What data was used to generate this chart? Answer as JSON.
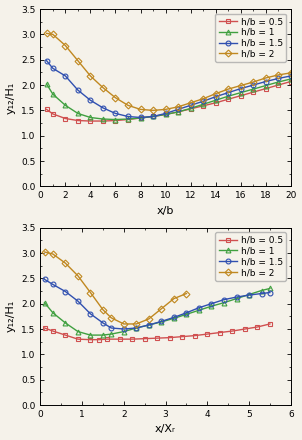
{
  "top": {
    "xlabel": "x/b",
    "ylabel": "y₁₂/H₁",
    "xlim": [
      0,
      20
    ],
    "ylim": [
      0,
      3.5
    ],
    "xticks": [
      0,
      2,
      4,
      6,
      8,
      10,
      12,
      14,
      16,
      18,
      20
    ],
    "yticks": [
      0,
      0.5,
      1.0,
      1.5,
      2.0,
      2.5,
      3.0,
      3.5
    ],
    "series": [
      {
        "label": "h/b = 0.5",
        "color": "#d05050",
        "marker": "s",
        "x": [
          0.5,
          1,
          2,
          3,
          4,
          5,
          6,
          7,
          8,
          9,
          10,
          11,
          12,
          13,
          14,
          15,
          16,
          17,
          18,
          19,
          20
        ],
        "y": [
          1.52,
          1.43,
          1.34,
          1.3,
          1.29,
          1.29,
          1.3,
          1.32,
          1.35,
          1.38,
          1.42,
          1.47,
          1.53,
          1.59,
          1.65,
          1.72,
          1.79,
          1.86,
          1.93,
          2.0,
          2.07
        ]
      },
      {
        "label": "h/b = 1",
        "color": "#40a040",
        "marker": "^",
        "x": [
          0.5,
          1,
          2,
          3,
          4,
          5,
          6,
          7,
          8,
          9,
          10,
          11,
          12,
          13,
          14,
          15,
          16,
          17,
          18,
          19,
          20
        ],
        "y": [
          2.02,
          1.82,
          1.6,
          1.44,
          1.36,
          1.33,
          1.32,
          1.33,
          1.35,
          1.38,
          1.42,
          1.47,
          1.54,
          1.62,
          1.7,
          1.78,
          1.85,
          1.92,
          1.99,
          2.06,
          2.12
        ]
      },
      {
        "label": "h/b = 1.5",
        "color": "#3050b0",
        "marker": "o",
        "x": [
          0.5,
          1,
          2,
          3,
          4,
          5,
          6,
          7,
          8,
          9,
          10,
          11,
          12,
          13,
          14,
          15,
          16,
          17,
          18,
          19,
          20
        ],
        "y": [
          2.48,
          2.33,
          2.18,
          1.9,
          1.7,
          1.55,
          1.44,
          1.38,
          1.36,
          1.38,
          1.44,
          1.52,
          1.6,
          1.68,
          1.77,
          1.85,
          1.93,
          2.0,
          2.07,
          2.13,
          2.18
        ]
      },
      {
        "label": "h/b = 2",
        "color": "#c08820",
        "marker": "D",
        "x": [
          0.5,
          1,
          2,
          3,
          4,
          5,
          6,
          7,
          8,
          9,
          10,
          11,
          12,
          13,
          14,
          15,
          16,
          17,
          18,
          19,
          20
        ],
        "y": [
          3.02,
          3.0,
          2.78,
          2.48,
          2.18,
          1.95,
          1.75,
          1.6,
          1.52,
          1.5,
          1.52,
          1.57,
          1.65,
          1.73,
          1.83,
          1.92,
          1.99,
          2.06,
          2.14,
          2.2,
          2.24
        ]
      }
    ]
  },
  "bottom": {
    "xlabel": "x/Xᵣ",
    "ylabel": "y₁₂/H₁",
    "xlim": [
      0,
      6
    ],
    "ylim": [
      0,
      3.5
    ],
    "xticks": [
      0,
      1,
      2,
      3,
      4,
      5,
      6
    ],
    "yticks": [
      0,
      0.5,
      1.0,
      1.5,
      2.0,
      2.5,
      3.0,
      3.5
    ],
    "series": [
      {
        "label": "h/b = 0.5",
        "color": "#d05050",
        "marker": "s",
        "x": [
          0.1,
          0.3,
          0.6,
          0.9,
          1.2,
          1.4,
          1.6,
          1.9,
          2.2,
          2.5,
          2.8,
          3.1,
          3.4,
          3.7,
          4.0,
          4.3,
          4.6,
          4.9,
          5.2,
          5.5
        ],
        "y": [
          1.52,
          1.46,
          1.38,
          1.3,
          1.29,
          1.29,
          1.3,
          1.3,
          1.3,
          1.31,
          1.32,
          1.33,
          1.35,
          1.37,
          1.4,
          1.43,
          1.46,
          1.5,
          1.54,
          1.6
        ]
      },
      {
        "label": "h/b = 1",
        "color": "#40a040",
        "marker": "^",
        "x": [
          0.1,
          0.3,
          0.6,
          0.9,
          1.2,
          1.5,
          1.7,
          2.0,
          2.3,
          2.6,
          2.9,
          3.2,
          3.5,
          3.8,
          4.1,
          4.4,
          4.7,
          5.0,
          5.3,
          5.5
        ],
        "y": [
          2.02,
          1.82,
          1.62,
          1.45,
          1.38,
          1.38,
          1.4,
          1.45,
          1.52,
          1.58,
          1.64,
          1.71,
          1.79,
          1.87,
          1.95,
          2.02,
          2.1,
          2.18,
          2.26,
          2.3
        ]
      },
      {
        "label": "h/b = 1.5",
        "color": "#3050b0",
        "marker": "o",
        "x": [
          0.1,
          0.3,
          0.6,
          0.9,
          1.2,
          1.5,
          1.7,
          2.0,
          2.3,
          2.6,
          2.9,
          3.2,
          3.5,
          3.8,
          4.1,
          4.4,
          4.7,
          5.0,
          5.3,
          5.5
        ],
        "y": [
          2.48,
          2.38,
          2.24,
          2.05,
          1.8,
          1.62,
          1.52,
          1.5,
          1.52,
          1.58,
          1.65,
          1.73,
          1.82,
          1.92,
          2.0,
          2.08,
          2.13,
          2.17,
          2.2,
          2.22
        ]
      },
      {
        "label": "h/b = 2",
        "color": "#c08820",
        "marker": "D",
        "x": [
          0.1,
          0.3,
          0.6,
          0.9,
          1.2,
          1.5,
          1.7,
          2.0,
          2.3,
          2.6,
          2.9,
          3.2,
          3.5
        ],
        "y": [
          3.02,
          2.98,
          2.8,
          2.55,
          2.22,
          1.88,
          1.72,
          1.6,
          1.6,
          1.7,
          1.9,
          2.1,
          2.2
        ]
      }
    ]
  },
  "marker_size": 3.5,
  "linewidth": 1.0,
  "legend_fontsize": 6.5,
  "tick_fontsize": 6.5,
  "label_fontsize": 8,
  "bg_color": "#f5f2ea"
}
